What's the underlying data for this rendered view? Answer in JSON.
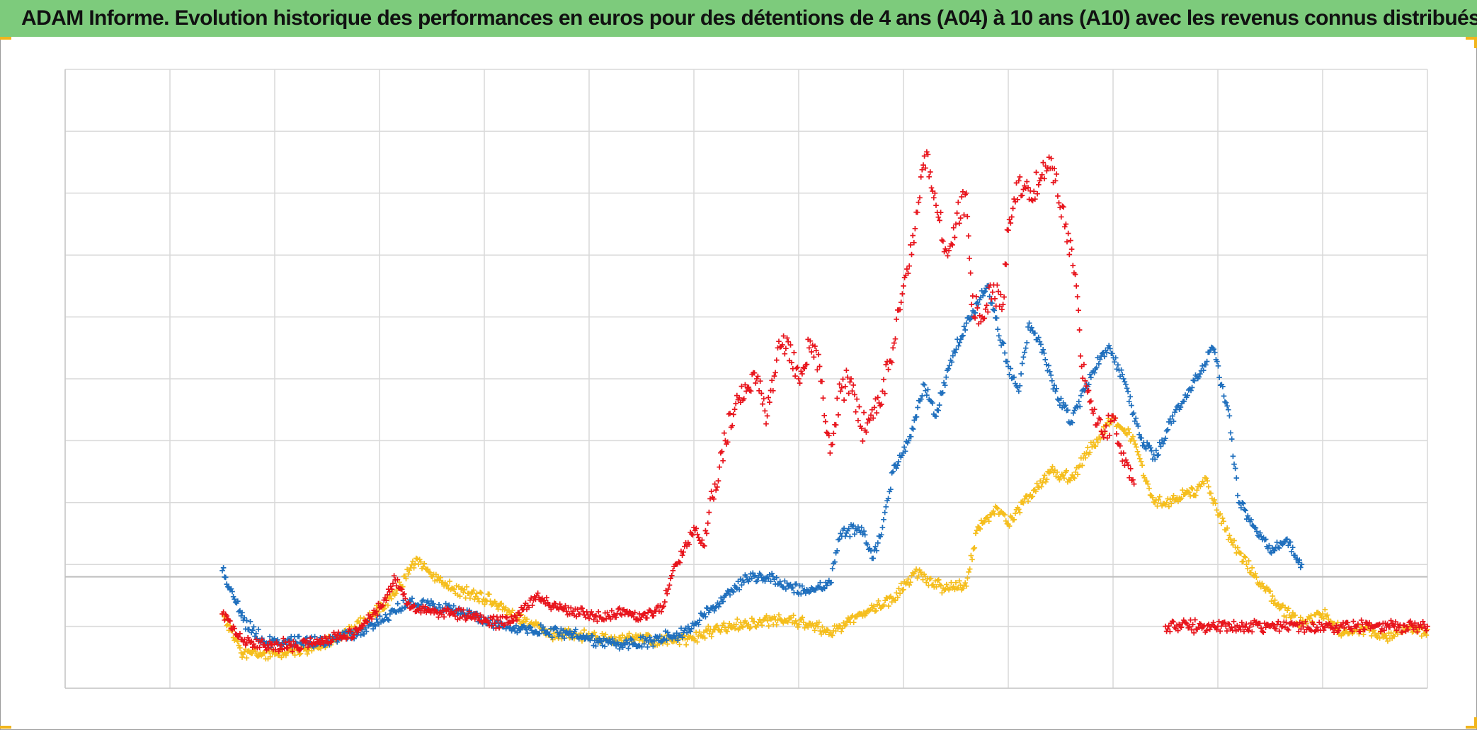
{
  "title": "ADAM Informe. Evolution historique des performances en euros pour des détentions de 4 ans (A04) à 10 ans (A10) avec les revenus connus distribués",
  "colors": {
    "header": "#7dcb7c",
    "grid": "#d9d9d9",
    "baseline": "#bfbfbf",
    "accent_corner": "#f1b51c"
  },
  "chart_data": {
    "type": "scatter",
    "title": "ADAM Informe. Evolution historique des performances en euros pour des détentions de 4 ans (A04) à 10 ans (A10) avec les revenus connus distribués",
    "xlabel": "",
    "ylabel": "",
    "x_ticks_labeled": false,
    "y_ticks_labeled": false,
    "grid": true,
    "legend": "none",
    "xlim": [
      0,
      13
    ],
    "ylim": [
      0,
      10
    ],
    "reference_line_y": 1.8,
    "marker": "plus",
    "series": [
      {
        "color": "#f5be1d",
        "points": [
          [
            1.5,
            1.2
          ],
          [
            1.7,
            0.55
          ],
          [
            2.0,
            0.55
          ],
          [
            2.3,
            0.62
          ],
          [
            2.6,
            0.8
          ],
          [
            2.95,
            1.2
          ],
          [
            3.2,
            1.65
          ],
          [
            3.35,
            2.1
          ],
          [
            3.55,
            1.75
          ],
          [
            3.8,
            1.55
          ],
          [
            4.1,
            1.4
          ],
          [
            4.3,
            1.15
          ],
          [
            4.6,
            0.9
          ],
          [
            4.9,
            0.85
          ],
          [
            5.2,
            0.8
          ],
          [
            5.5,
            0.8
          ],
          [
            5.8,
            0.75
          ],
          [
            6.0,
            0.8
          ],
          [
            6.2,
            0.95
          ],
          [
            6.5,
            1.05
          ],
          [
            6.8,
            1.1
          ],
          [
            7.1,
            1.05
          ],
          [
            7.3,
            0.9
          ],
          [
            7.6,
            1.2
          ],
          [
            7.9,
            1.45
          ],
          [
            8.1,
            1.85
          ],
          [
            8.4,
            1.6
          ],
          [
            8.6,
            1.65
          ],
          [
            8.7,
            2.55
          ],
          [
            8.9,
            2.9
          ],
          [
            9.0,
            2.65
          ],
          [
            9.2,
            3.1
          ],
          [
            9.4,
            3.5
          ],
          [
            9.6,
            3.4
          ],
          [
            9.8,
            3.9
          ],
          [
            10.0,
            4.4
          ],
          [
            10.2,
            4.0
          ],
          [
            10.3,
            3.4
          ],
          [
            10.4,
            3.0
          ],
          [
            10.6,
            3.05
          ],
          [
            10.8,
            3.2
          ],
          [
            10.9,
            3.35
          ],
          [
            11.0,
            2.8
          ],
          [
            11.2,
            2.2
          ],
          [
            11.4,
            1.7
          ],
          [
            11.6,
            1.3
          ],
          [
            11.8,
            1.05
          ],
          [
            12.0,
            1.2
          ],
          [
            12.2,
            0.9
          ],
          [
            12.4,
            0.95
          ],
          [
            12.6,
            0.85
          ],
          [
            12.8,
            0.95
          ],
          [
            13.0,
            0.95
          ]
        ]
      },
      {
        "color": "#1f6fbd",
        "points": [
          [
            1.5,
            1.9
          ],
          [
            1.7,
            1.1
          ],
          [
            1.9,
            0.75
          ],
          [
            2.2,
            0.75
          ],
          [
            2.5,
            0.75
          ],
          [
            2.8,
            0.9
          ],
          [
            3.1,
            1.2
          ],
          [
            3.3,
            1.4
          ],
          [
            3.6,
            1.3
          ],
          [
            3.9,
            1.2
          ],
          [
            4.1,
            1.05
          ],
          [
            4.4,
            0.95
          ],
          [
            4.7,
            0.9
          ],
          [
            5.0,
            0.8
          ],
          [
            5.3,
            0.7
          ],
          [
            5.6,
            0.75
          ],
          [
            5.9,
            0.9
          ],
          [
            6.1,
            1.2
          ],
          [
            6.3,
            1.5
          ],
          [
            6.5,
            1.8
          ],
          [
            6.7,
            1.8
          ],
          [
            6.9,
            1.65
          ],
          [
            7.1,
            1.55
          ],
          [
            7.3,
            1.7
          ],
          [
            7.4,
            2.5
          ],
          [
            7.6,
            2.6
          ],
          [
            7.7,
            2.1
          ],
          [
            7.8,
            2.6
          ],
          [
            7.9,
            3.5
          ],
          [
            8.05,
            4.0
          ],
          [
            8.2,
            4.9
          ],
          [
            8.3,
            4.4
          ],
          [
            8.45,
            5.3
          ],
          [
            8.6,
            5.9
          ],
          [
            8.8,
            6.5
          ],
          [
            8.9,
            5.8
          ],
          [
            9.0,
            5.2
          ],
          [
            9.1,
            4.8
          ],
          [
            9.2,
            5.9
          ],
          [
            9.3,
            5.6
          ],
          [
            9.45,
            4.8
          ],
          [
            9.6,
            4.3
          ],
          [
            9.8,
            5.1
          ],
          [
            9.95,
            5.5
          ],
          [
            10.1,
            5.0
          ],
          [
            10.25,
            4.1
          ],
          [
            10.4,
            3.7
          ],
          [
            10.6,
            4.5
          ],
          [
            10.7,
            4.7
          ],
          [
            10.95,
            5.5
          ],
          [
            11.1,
            4.5
          ],
          [
            11.2,
            3.0
          ],
          [
            11.35,
            2.6
          ],
          [
            11.5,
            2.2
          ],
          [
            11.65,
            2.4
          ],
          [
            11.8,
            2.0
          ]
        ]
      },
      {
        "color": "#e8141c",
        "points": [
          [
            1.5,
            1.2
          ],
          [
            1.7,
            0.75
          ],
          [
            1.9,
            0.7
          ],
          [
            2.2,
            0.7
          ],
          [
            2.5,
            0.75
          ],
          [
            2.8,
            0.95
          ],
          [
            3.0,
            1.3
          ],
          [
            3.15,
            1.75
          ],
          [
            3.3,
            1.3
          ],
          [
            3.5,
            1.25
          ],
          [
            3.7,
            1.2
          ],
          [
            3.9,
            1.2
          ],
          [
            4.1,
            1.05
          ],
          [
            4.3,
            1.15
          ],
          [
            4.5,
            1.5
          ],
          [
            4.7,
            1.3
          ],
          [
            4.9,
            1.2
          ],
          [
            5.1,
            1.15
          ],
          [
            5.3,
            1.2
          ],
          [
            5.5,
            1.15
          ],
          [
            5.7,
            1.3
          ],
          [
            5.8,
            1.9
          ],
          [
            5.9,
            2.2
          ],
          [
            6.0,
            2.6
          ],
          [
            6.1,
            2.3
          ],
          [
            6.2,
            3.3
          ],
          [
            6.3,
            4.0
          ],
          [
            6.4,
            4.6
          ],
          [
            6.5,
            4.8
          ],
          [
            6.6,
            5.0
          ],
          [
            6.7,
            4.4
          ],
          [
            6.8,
            5.5
          ],
          [
            6.9,
            5.6
          ],
          [
            7.0,
            5.0
          ],
          [
            7.1,
            5.5
          ],
          [
            7.2,
            5.2
          ],
          [
            7.3,
            3.8
          ],
          [
            7.4,
            4.8
          ],
          [
            7.5,
            5.0
          ],
          [
            7.6,
            4.2
          ],
          [
            7.7,
            4.5
          ],
          [
            7.8,
            4.8
          ],
          [
            7.9,
            5.5
          ],
          [
            8.0,
            6.5
          ],
          [
            8.1,
            7.2
          ],
          [
            8.2,
            8.6
          ],
          [
            8.3,
            8.0
          ],
          [
            8.4,
            7.1
          ],
          [
            8.5,
            7.5
          ],
          [
            8.6,
            8.0
          ],
          [
            8.65,
            6.2
          ],
          [
            8.75,
            6.0
          ],
          [
            8.85,
            6.4
          ],
          [
            8.95,
            6.2
          ],
          [
            9.0,
            7.4
          ],
          [
            9.1,
            8.2
          ],
          [
            9.2,
            7.9
          ],
          [
            9.3,
            8.2
          ],
          [
            9.4,
            8.4
          ],
          [
            9.45,
            8.2
          ],
          [
            9.55,
            7.5
          ],
          [
            9.65,
            6.5
          ],
          [
            9.7,
            5.2
          ],
          [
            9.8,
            4.5
          ],
          [
            9.9,
            4.1
          ],
          [
            10.0,
            4.4
          ],
          [
            10.1,
            3.8
          ],
          [
            10.2,
            3.3
          ]
        ]
      },
      {
        "color": "#e8141c",
        "points": [
          [
            10.5,
            1.0
          ],
          [
            11.0,
            1.0
          ],
          [
            11.5,
            1.0
          ],
          [
            12.0,
            1.0
          ],
          [
            12.5,
            1.0
          ],
          [
            13.0,
            1.0
          ]
        ]
      }
    ]
  }
}
